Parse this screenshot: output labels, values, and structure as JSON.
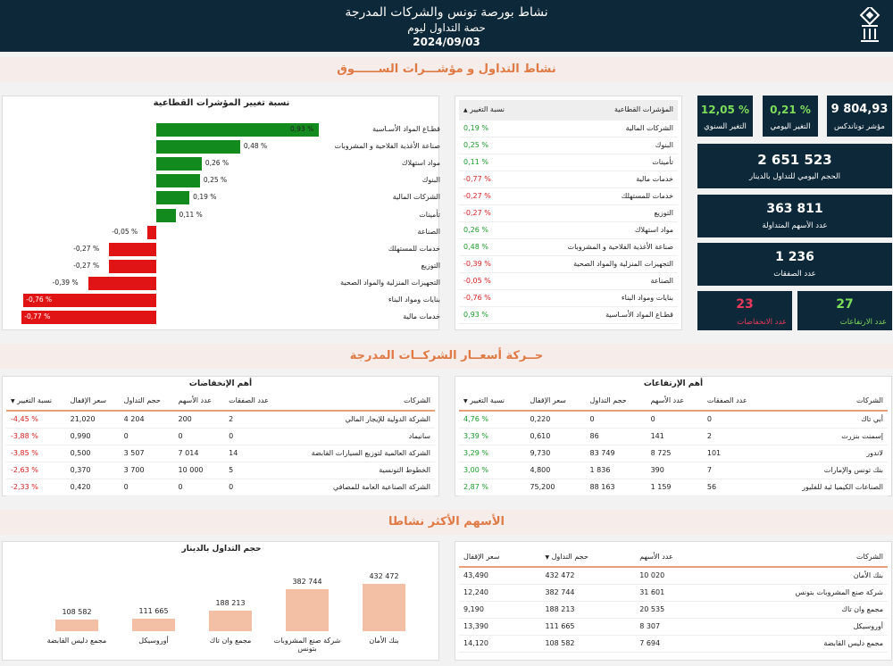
{
  "header": {
    "title": "نشاط بورصة تونس والشركات المدرجة",
    "subtitle": "حصة التداول ليوم",
    "date": "2024/09/03"
  },
  "sections": {
    "market": "نشاط التداول و مؤشـــرات الســــــوق",
    "prices": "حــركة أسعــار الشركــات المدرجة",
    "active": "الأسهم الأكثر نشاطا"
  },
  "kpis": {
    "tunindex_value": "9 804,93",
    "tunindex_label": "مؤشر توناندكس",
    "daily_change_value": "0,21 %",
    "daily_change_label": "التغير اليومي",
    "annual_change_value": "12,05 %",
    "annual_change_label": "التغير السنوي",
    "volume_value": "2 651 523",
    "volume_label": "الحجم اليومي للتداول بالدينار",
    "shares_value": "363 811",
    "shares_label": "عدد الأسهم المتداولة",
    "trades_value": "1 236",
    "trades_label": "عدد الصفقات",
    "up_value": "27",
    "up_label": "عدد الارتفاعات",
    "down_value": "23",
    "down_label": "عدد الانخفاضات",
    "up_color": "#7ddc5a",
    "down_color": "#e83a5a"
  },
  "sector_table": {
    "col_name": "المؤشرات القطاعية",
    "col_change": "نسبة التغيير",
    "rows": [
      {
        "name": "الشركات المالية",
        "change": "0,19 %",
        "dir": "pos"
      },
      {
        "name": "البنوك",
        "change": "0,25 %",
        "dir": "pos"
      },
      {
        "name": "تأمينات",
        "change": "0,11 %",
        "dir": "pos"
      },
      {
        "name": "خدمات مالية",
        "change": "-0,77 %",
        "dir": "neg"
      },
      {
        "name": "خدمات للمستهلك",
        "change": "-0,27 %",
        "dir": "neg"
      },
      {
        "name": "التوزيع",
        "change": "-0,27 %",
        "dir": "neg"
      },
      {
        "name": "مواد استهلاك",
        "change": "0,26 %",
        "dir": "pos"
      },
      {
        "name": "صناعة الأغذية الفلاحية و المشروبات",
        "change": "0,48 %",
        "dir": "pos"
      },
      {
        "name": "التجهيزات المنزلية والمواد الصحية",
        "change": "-0,39 %",
        "dir": "neg"
      },
      {
        "name": "الصناعة",
        "change": "-0,05 %",
        "dir": "neg"
      },
      {
        "name": "بنايات ومواد البناء",
        "change": "-0,76 %",
        "dir": "neg"
      },
      {
        "name": "قطـاع المواد الأسـاسية",
        "change": "0,93 %",
        "dir": "pos"
      }
    ]
  },
  "sector_chart": {
    "title": "نسبة تغيير المؤشرات القطاعية",
    "pos_color": "#128a1e",
    "neg_color": "#e01414",
    "items": [
      {
        "name": "قطـاع المواد الأسـاسية",
        "value": 0.93,
        "label": "0,93 %"
      },
      {
        "name": "صناعة الأغذية الفلاحية و المشروبات",
        "value": 0.48,
        "label": "0,48 %"
      },
      {
        "name": "مواد استهلاك",
        "value": 0.26,
        "label": "0,26 %"
      },
      {
        "name": "البنوك",
        "value": 0.25,
        "label": "0,25 %"
      },
      {
        "name": "الشركات المالية",
        "value": 0.19,
        "label": "0,19 %"
      },
      {
        "name": "تأمينات",
        "value": 0.11,
        "label": "0,11 %"
      },
      {
        "name": "الصناعة",
        "value": -0.05,
        "label": "-0,05 %"
      },
      {
        "name": "خدمات للمستهلك",
        "value": -0.27,
        "label": "-0,27 %"
      },
      {
        "name": "التوزيع",
        "value": -0.27,
        "label": "-0,27 %"
      },
      {
        "name": "التجهيزات المنزلية والمواد الصحية",
        "value": -0.39,
        "label": "-0,39 %"
      },
      {
        "name": "بنايات ومواد البناء",
        "value": -0.76,
        "label": "-0,76 %"
      },
      {
        "name": "خدمات مالية",
        "value": -0.77,
        "label": "-0,77 %"
      }
    ]
  },
  "gainers": {
    "title": "أهم الإرتفاعات",
    "cols": [
      "الشركات",
      "عدد الصفقات",
      "عدد الأسهم",
      "حجم التداول",
      "سعر الإقفال",
      "نسبة التغيير"
    ],
    "rows": [
      [
        "أبي تاك",
        "0",
        "0",
        "0",
        "0,220",
        "4,76 %"
      ],
      [
        "إسمنت بنزرت",
        "2",
        "141",
        "86",
        "0,610",
        "3,39 %"
      ],
      [
        "لاندور",
        "101",
        "8 725",
        "83 749",
        "9,730",
        "3,29 %"
      ],
      [
        "بنك تونس والإمارات",
        "7",
        "390",
        "1 836",
        "4,800",
        "3,00 %"
      ],
      [
        "الصناعات الكيميا ئية للفليور",
        "56",
        "1 159",
        "88 163",
        "75,200",
        "2,87 %"
      ]
    ]
  },
  "losers": {
    "title": "أهم الإنخفاضات",
    "cols": [
      "الشركات",
      "عدد الصفقات",
      "عدد الأسهم",
      "حجم التداول",
      "سعر الإقفال",
      "نسبة التغيير"
    ],
    "rows": [
      [
        "الشركة الدولية للإيجار المالي",
        "2",
        "200",
        "4 204",
        "21,020",
        "-4,45 %"
      ],
      [
        "سانيماد",
        "0",
        "0",
        "0",
        "0,990",
        "-3,88 %"
      ],
      [
        "الشركة العالمية لتوزيع السيارات القابضة",
        "14",
        "7 014",
        "3 507",
        "0,500",
        "-3,85 %"
      ],
      [
        "الخطوط التونسية",
        "5",
        "10 000",
        "3 700",
        "0,370",
        "-2,63 %"
      ],
      [
        "الشركة الصناعية العامة للمصافي",
        "0",
        "0",
        "0",
        "0,420",
        "-2,33 %"
      ]
    ]
  },
  "active_table": {
    "cols": [
      "الشركات",
      "عدد الأسهم",
      "حجم التداول",
      "سعر الإقفال"
    ],
    "rows": [
      [
        "بنك الأمان",
        "10 020",
        "432 472",
        "43,490"
      ],
      [
        "شركة صنع المشروبات بتونس",
        "31 601",
        "382 744",
        "12,240"
      ],
      [
        "مجمع وان تاك",
        "20 535",
        "188 213",
        "9,190"
      ],
      [
        "أوروسيكل",
        "8 307",
        "111 665",
        "13,390"
      ],
      [
        "مجمع دليس القابضة",
        "7 694",
        "108 582",
        "14,120"
      ]
    ]
  },
  "chart_data": {
    "type": "bar",
    "title": "حجم التداول بالدينار",
    "categories": [
      "بنك الأمان",
      "شركة صنع المشروبات بتونس",
      "مجمع وان تاك",
      "أوروسيكل",
      "مجمع دليس القابضة"
    ],
    "values": [
      432472,
      382744,
      188213,
      111665,
      108582
    ],
    "labels": [
      "432 472",
      "382 744",
      "188 213",
      "111 665",
      "108 582"
    ],
    "bar_color": "#f3c0a6"
  }
}
